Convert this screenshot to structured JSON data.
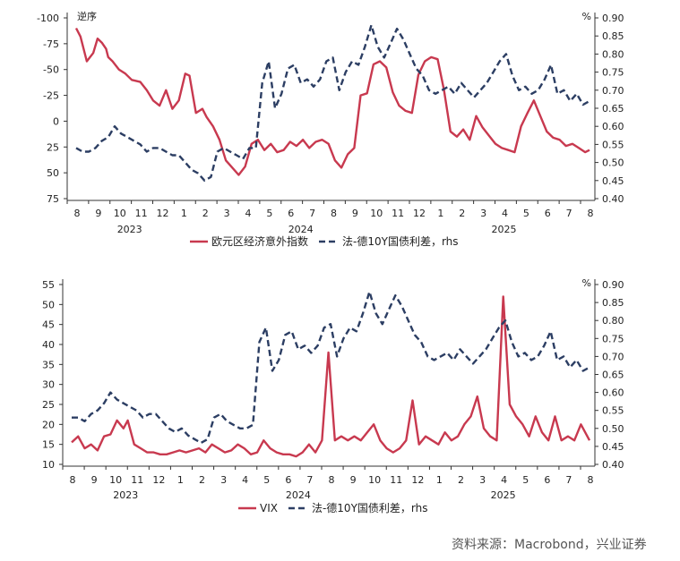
{
  "source_note": "资料来源：Macrobond，兴业证券",
  "colors": {
    "red": "#c8394f",
    "navy": "#2c3e63",
    "axis": "#333333"
  },
  "chart_data": [
    {
      "type": "line",
      "left_axis_label": "逆序",
      "right_axis_label": "%",
      "left_ticks": [
        "-100",
        "-75",
        "-50",
        "-25",
        "0",
        "25",
        "50",
        "75"
      ],
      "right_ticks": [
        "0.90",
        "0.85",
        "0.80",
        "0.75",
        "0.70",
        "0.65",
        "0.60",
        "0.55",
        "0.50",
        "0.45",
        "0.40"
      ],
      "ylim_left_reversed": [
        -100,
        75
      ],
      "ylim_right": [
        0.4,
        0.9
      ],
      "month_labels": [
        "8",
        "9",
        "10",
        "11",
        "12",
        "1",
        "2",
        "3",
        "4",
        "5",
        "6",
        "7",
        "8",
        "9",
        "10",
        "11",
        "12",
        "1",
        "2",
        "3",
        "4",
        "5",
        "6",
        "7",
        "8"
      ],
      "year_labels": [
        "2023",
        "2024",
        "2025"
      ],
      "legend": [
        "欧元区经济意外指数",
        "法-德10Y国债利差，rhs"
      ],
      "series": [
        {
          "name": "欧元区经济意外指数",
          "axis": "left",
          "t": [
            0,
            0.2,
            0.5,
            0.8,
            1.0,
            1.2,
            1.4,
            1.5,
            1.7,
            2.0,
            2.3,
            2.6,
            3.0,
            3.3,
            3.6,
            3.9,
            4.0,
            4.2,
            4.5,
            4.8,
            5.1,
            5.3,
            5.6,
            5.9,
            6.1,
            6.4,
            6.7,
            7.0,
            7.3,
            7.6,
            7.9,
            8.2,
            8.5,
            8.8,
            9.1,
            9.4,
            9.7,
            10.0,
            10.3,
            10.6,
            10.9,
            11.2,
            11.5,
            11.8,
            12.1,
            12.4,
            12.7,
            13.0,
            13.3,
            13.6,
            13.9,
            14.2,
            14.5,
            14.8,
            15.1,
            15.4,
            15.7,
            16.0,
            16.3,
            16.6,
            16.9,
            17.2,
            17.5,
            17.8,
            18.1,
            18.4,
            18.7,
            19.0,
            19.3,
            19.6,
            19.9,
            20.2,
            20.5,
            20.8,
            21.1,
            21.4,
            21.7,
            22.0,
            22.3,
            22.6,
            22.9,
            23.2,
            23.5,
            23.8,
            24.0
          ],
          "y": [
            -90,
            -82,
            -58,
            -66,
            -80,
            -76,
            -70,
            -62,
            -58,
            -50,
            -46,
            -40,
            -38,
            -30,
            -20,
            -15,
            -20,
            -30,
            -12,
            -20,
            -46,
            -44,
            -8,
            -12,
            -4,
            5,
            18,
            38,
            45,
            52,
            44,
            22,
            18,
            28,
            22,
            30,
            28,
            20,
            24,
            18,
            26,
            20,
            18,
            22,
            38,
            45,
            32,
            26,
            -25,
            -27,
            -55,
            -58,
            -52,
            -28,
            -15,
            -10,
            -8,
            -45,
            -58,
            -62,
            -60,
            -30,
            10,
            15,
            8,
            18,
            -5,
            6,
            14,
            22,
            26,
            28,
            30,
            5,
            -8,
            -20,
            -5,
            10,
            16,
            18,
            24,
            22,
            26,
            30,
            28
          ]
        },
        {
          "name": "法-德10Y国债利差，rhs",
          "axis": "right",
          "t": [
            0,
            0.3,
            0.6,
            0.9,
            1.2,
            1.5,
            1.8,
            2.1,
            2.4,
            2.7,
            3.0,
            3.3,
            3.6,
            3.9,
            4.2,
            4.5,
            4.8,
            5.1,
            5.4,
            5.7,
            6.0,
            6.3,
            6.6,
            6.9,
            7.2,
            7.5,
            7.8,
            8.1,
            8.4,
            8.7,
            9.0,
            9.3,
            9.6,
            9.9,
            10.2,
            10.5,
            10.8,
            11.1,
            11.4,
            11.7,
            12.0,
            12.3,
            12.6,
            12.9,
            13.2,
            13.5,
            13.8,
            14.1,
            14.4,
            14.7,
            15.0,
            15.3,
            15.6,
            15.9,
            16.2,
            16.5,
            16.8,
            17.1,
            17.4,
            17.7,
            18.0,
            18.3,
            18.6,
            18.9,
            19.2,
            19.5,
            19.8,
            20.1,
            20.4,
            20.7,
            21.0,
            21.3,
            21.6,
            21.9,
            22.2,
            22.5,
            22.8,
            23.1,
            23.4,
            23.7,
            24.0
          ],
          "y": [
            0.54,
            0.53,
            0.53,
            0.54,
            0.56,
            0.57,
            0.6,
            0.58,
            0.57,
            0.56,
            0.55,
            0.53,
            0.54,
            0.54,
            0.53,
            0.52,
            0.52,
            0.5,
            0.48,
            0.47,
            0.45,
            0.46,
            0.53,
            0.54,
            0.53,
            0.52,
            0.51,
            0.54,
            0.54,
            0.72,
            0.78,
            0.65,
            0.69,
            0.76,
            0.77,
            0.72,
            0.73,
            0.71,
            0.73,
            0.78,
            0.79,
            0.7,
            0.75,
            0.78,
            0.77,
            0.82,
            0.88,
            0.82,
            0.79,
            0.83,
            0.87,
            0.84,
            0.8,
            0.76,
            0.74,
            0.7,
            0.69,
            0.7,
            0.71,
            0.69,
            0.72,
            0.7,
            0.68,
            0.7,
            0.72,
            0.75,
            0.78,
            0.8,
            0.74,
            0.7,
            0.71,
            0.69,
            0.7,
            0.73,
            0.77,
            0.69,
            0.7,
            0.67,
            0.69,
            0.66,
            0.67
          ]
        }
      ]
    },
    {
      "type": "line",
      "left_axis_label": "",
      "right_axis_label": "%",
      "left_ticks": [
        "55",
        "50",
        "45",
        "40",
        "35",
        "30",
        "25",
        "20",
        "15",
        "10"
      ],
      "right_ticks": [
        "0.90",
        "0.85",
        "0.80",
        "0.75",
        "0.70",
        "0.65",
        "0.60",
        "0.55",
        "0.50",
        "0.45",
        "0.40"
      ],
      "ylim_left": [
        10,
        55
      ],
      "ylim_right": [
        0.4,
        0.9
      ],
      "month_labels": [
        "8",
        "9",
        "10",
        "11",
        "12",
        "1",
        "2",
        "3",
        "4",
        "5",
        "6",
        "7",
        "8",
        "9",
        "10",
        "11",
        "12",
        "1",
        "2",
        "3",
        "4",
        "5",
        "6",
        "7",
        "8"
      ],
      "year_labels": [
        "2023",
        "2024",
        "2025"
      ],
      "legend": [
        "VIX",
        "法-德10Y国债利差，rhs"
      ],
      "series": [
        {
          "name": "VIX",
          "axis": "left",
          "t": [
            0,
            0.3,
            0.6,
            0.9,
            1.2,
            1.5,
            1.8,
            2.1,
            2.4,
            2.6,
            2.9,
            3.2,
            3.5,
            3.8,
            4.1,
            4.4,
            4.7,
            5.0,
            5.3,
            5.6,
            5.9,
            6.2,
            6.5,
            6.8,
            7.1,
            7.4,
            7.7,
            8.0,
            8.3,
            8.6,
            8.9,
            9.2,
            9.5,
            9.8,
            10.1,
            10.4,
            10.7,
            11.0,
            11.3,
            11.6,
            11.9,
            12.2,
            12.5,
            12.8,
            13.1,
            13.4,
            13.7,
            14.0,
            14.3,
            14.6,
            14.9,
            15.2,
            15.5,
            15.8,
            16.1,
            16.4,
            16.7,
            17.0,
            17.3,
            17.6,
            17.9,
            18.2,
            18.5,
            18.8,
            19.1,
            19.4,
            19.7,
            20.0,
            20.3,
            20.6,
            20.9,
            21.2,
            21.5,
            21.8,
            22.1,
            22.4,
            22.7,
            23.0,
            23.3,
            23.6,
            24.0
          ],
          "y": [
            15.5,
            17,
            14,
            15,
            13.5,
            17,
            17.5,
            21,
            19,
            21,
            15,
            14,
            13,
            13,
            12.5,
            12.5,
            13,
            13.5,
            13,
            13.5,
            14,
            13,
            15,
            14,
            13,
            13.5,
            15,
            14,
            12.5,
            13,
            16,
            14,
            13,
            12.5,
            12.5,
            12,
            13,
            15,
            13,
            16,
            38,
            16,
            17,
            16,
            17,
            16,
            18,
            20,
            16,
            14,
            13,
            14,
            16,
            26,
            15,
            17,
            16,
            15,
            18,
            16,
            17,
            20,
            22,
            27,
            19,
            17,
            16,
            52,
            25,
            22,
            20,
            17,
            22,
            18,
            16,
            22,
            16,
            17,
            16,
            20,
            16
          ]
        },
        {
          "name": "法-德10Y国债利差，rhs",
          "axis": "right",
          "t": [
            0,
            0.3,
            0.6,
            0.9,
            1.2,
            1.5,
            1.8,
            2.1,
            2.4,
            2.7,
            3.0,
            3.3,
            3.6,
            3.9,
            4.2,
            4.5,
            4.8,
            5.1,
            5.4,
            5.7,
            6.0,
            6.3,
            6.6,
            6.9,
            7.2,
            7.5,
            7.8,
            8.1,
            8.4,
            8.7,
            9.0,
            9.3,
            9.6,
            9.9,
            10.2,
            10.5,
            10.8,
            11.1,
            11.4,
            11.7,
            12.0,
            12.3,
            12.6,
            12.9,
            13.2,
            13.5,
            13.8,
            14.1,
            14.4,
            14.7,
            15.0,
            15.3,
            15.6,
            15.9,
            16.2,
            16.5,
            16.8,
            17.1,
            17.4,
            17.7,
            18.0,
            18.3,
            18.6,
            18.9,
            19.2,
            19.5,
            19.8,
            20.1,
            20.4,
            20.7,
            21.0,
            21.3,
            21.6,
            21.9,
            22.2,
            22.5,
            22.8,
            23.1,
            23.4,
            23.7,
            24.0
          ],
          "y": [
            0.53,
            0.53,
            0.52,
            0.54,
            0.55,
            0.57,
            0.6,
            0.58,
            0.57,
            0.56,
            0.55,
            0.53,
            0.54,
            0.54,
            0.52,
            0.5,
            0.49,
            0.5,
            0.48,
            0.47,
            0.46,
            0.47,
            0.53,
            0.54,
            0.52,
            0.51,
            0.5,
            0.5,
            0.51,
            0.74,
            0.78,
            0.66,
            0.69,
            0.76,
            0.77,
            0.72,
            0.73,
            0.71,
            0.73,
            0.78,
            0.79,
            0.7,
            0.75,
            0.78,
            0.77,
            0.82,
            0.88,
            0.82,
            0.79,
            0.83,
            0.87,
            0.84,
            0.8,
            0.76,
            0.74,
            0.7,
            0.69,
            0.7,
            0.71,
            0.69,
            0.72,
            0.7,
            0.68,
            0.7,
            0.72,
            0.75,
            0.78,
            0.8,
            0.74,
            0.7,
            0.71,
            0.69,
            0.7,
            0.73,
            0.77,
            0.69,
            0.7,
            0.67,
            0.69,
            0.66,
            0.67
          ]
        }
      ]
    }
  ]
}
